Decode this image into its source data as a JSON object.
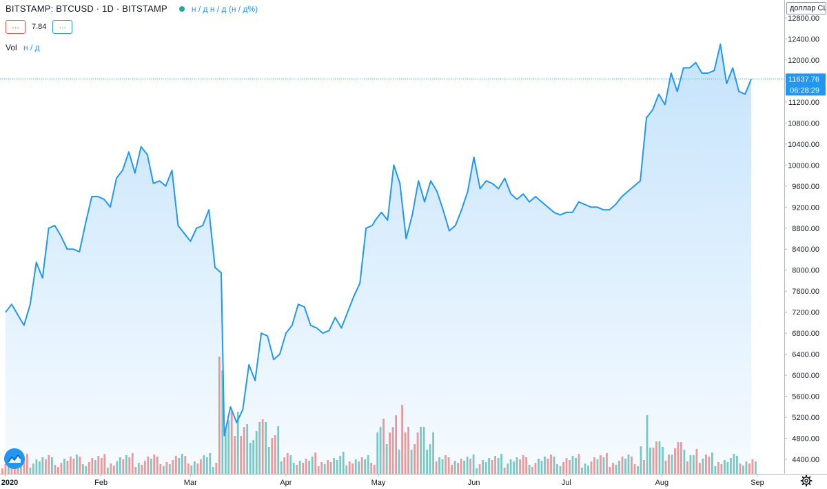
{
  "legend": {
    "symbol": "BITSTAMP: BTCUSD · 1D · BITSTAMP",
    "ohlc": "н / д н / д (н / д%)",
    "indicator_btn1": "...",
    "indicator_value": "7.84",
    "indicator_btn2": "...",
    "vol_label": "Vol",
    "vol_value": "н / д"
  },
  "currency_button": "доллар США",
  "price_tag": {
    "price": "11637.76",
    "countdown": "06:28:29"
  },
  "colors": {
    "line": "#2196f3",
    "up_volume": "#26a69a",
    "down_volume": "#ef5350",
    "text": "#131722"
  },
  "chart_data": {
    "type": "area",
    "x_ticks": [
      "2020",
      "Feb",
      "Mar",
      "Apr",
      "May",
      "Jun",
      "Jul",
      "Aug",
      "Sep"
    ],
    "y_ticks": [
      "12800.00",
      "12400.00",
      "12000.00",
      "11200.00",
      "10800.00",
      "10400.00",
      "10000.00",
      "9600.00",
      "9200.00",
      "8800.00",
      "8400.00",
      "8000.00",
      "7600.00",
      "7200.00",
      "6800.00",
      "6400.00",
      "6000.00",
      "5600.00",
      "5200.00",
      "4800.00",
      "4400.00"
    ],
    "ylim": [
      4100,
      12950
    ],
    "last_price": 11637.76,
    "x": [
      "2020-01-01",
      "2020-01-03",
      "2020-01-05",
      "2020-01-07",
      "2020-01-09",
      "2020-01-11",
      "2020-01-13",
      "2020-01-15",
      "2020-01-17",
      "2020-01-19",
      "2020-01-21",
      "2020-01-23",
      "2020-01-25",
      "2020-01-27",
      "2020-01-29",
      "2020-01-31",
      "2020-02-02",
      "2020-02-04",
      "2020-02-06",
      "2020-02-08",
      "2020-02-10",
      "2020-02-12",
      "2020-02-14",
      "2020-02-16",
      "2020-02-18",
      "2020-02-20",
      "2020-02-22",
      "2020-02-24",
      "2020-02-26",
      "2020-02-28",
      "2020-03-01",
      "2020-03-03",
      "2020-03-05",
      "2020-03-07",
      "2020-03-09",
      "2020-03-11",
      "2020-03-12",
      "2020-03-14",
      "2020-03-16",
      "2020-03-18",
      "2020-03-20",
      "2020-03-22",
      "2020-03-24",
      "2020-03-26",
      "2020-03-28",
      "2020-03-30",
      "2020-04-01",
      "2020-04-03",
      "2020-04-05",
      "2020-04-07",
      "2020-04-09",
      "2020-04-11",
      "2020-04-13",
      "2020-04-15",
      "2020-04-17",
      "2020-04-19",
      "2020-04-21",
      "2020-04-23",
      "2020-04-25",
      "2020-04-27",
      "2020-04-29",
      "2020-04-30",
      "2020-05-02",
      "2020-05-04",
      "2020-05-06",
      "2020-05-08",
      "2020-05-10",
      "2020-05-12",
      "2020-05-14",
      "2020-05-16",
      "2020-05-18",
      "2020-05-20",
      "2020-05-22",
      "2020-05-24",
      "2020-05-26",
      "2020-05-28",
      "2020-05-30",
      "2020-06-01",
      "2020-06-03",
      "2020-06-05",
      "2020-06-07",
      "2020-06-09",
      "2020-06-11",
      "2020-06-13",
      "2020-06-15",
      "2020-06-17",
      "2020-06-19",
      "2020-06-21",
      "2020-06-23",
      "2020-06-25",
      "2020-06-27",
      "2020-06-29",
      "2020-07-01",
      "2020-07-03",
      "2020-07-05",
      "2020-07-07",
      "2020-07-09",
      "2020-07-11",
      "2020-07-13",
      "2020-07-15",
      "2020-07-17",
      "2020-07-19",
      "2020-07-21",
      "2020-07-23",
      "2020-07-25",
      "2020-07-27",
      "2020-07-29",
      "2020-07-31",
      "2020-08-02",
      "2020-08-04",
      "2020-08-06",
      "2020-08-08",
      "2020-08-10",
      "2020-08-12",
      "2020-08-14",
      "2020-08-16",
      "2020-08-18",
      "2020-08-20",
      "2020-08-22",
      "2020-08-24",
      "2020-08-26",
      "2020-08-28",
      "2020-08-30"
    ],
    "y": [
      7200,
      7350,
      7150,
      6950,
      7350,
      8150,
      7850,
      8800,
      8850,
      8650,
      8400,
      8400,
      8350,
      8900,
      9400,
      9400,
      9350,
      9200,
      9750,
      9900,
      10250,
      9850,
      10350,
      10200,
      9650,
      9700,
      9600,
      9900,
      8850,
      8700,
      8550,
      8800,
      8850,
      9150,
      8050,
      7950,
      4850,
      5400,
      5100,
      5350,
      6200,
      5900,
      6800,
      6750,
      6300,
      6400,
      6800,
      6950,
      7350,
      7300,
      6950,
      6900,
      6800,
      6850,
      7100,
      6900,
      7200,
      7500,
      7750,
      8800,
      8850,
      8950,
      9100,
      8950,
      10000,
      9650,
      8600,
      9050,
      9700,
      9300,
      9700,
      9500,
      9150,
      8750,
      8850,
      9150,
      9500,
      10150,
      9550,
      9700,
      9650,
      9550,
      9750,
      9450,
      9350,
      9450,
      9300,
      9400,
      9300,
      9200,
      9100,
      9050,
      9100,
      9100,
      9300,
      9250,
      9200,
      9200,
      9150,
      9150,
      9250,
      9400,
      9500,
      9600,
      9700,
      10900,
      11050,
      11350,
      11150,
      11750,
      11400,
      11850,
      11850,
      11950,
      11750,
      11750,
      11800,
      12300,
      11550,
      11850,
      11400,
      11350,
      11637.76
    ]
  }
}
